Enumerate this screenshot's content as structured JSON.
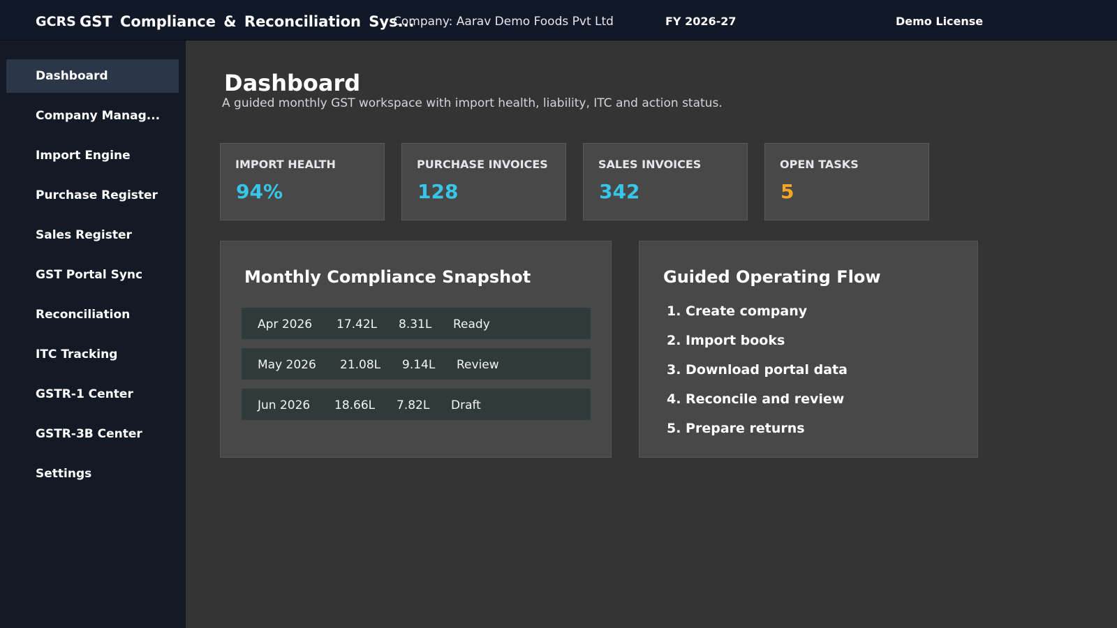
{
  "topbar": {
    "brand_code": "GCRS",
    "app_title": "GST Compliance & Reconciliation Sys...",
    "company": "Company: Aarav Demo Foods Pvt Ltd",
    "fiscal_year": "FY 2026-27",
    "license": "Demo License"
  },
  "sidebar": {
    "items": [
      {
        "label": "Dashboard",
        "active": true
      },
      {
        "label": "Company Manag..."
      },
      {
        "label": "Import Engine"
      },
      {
        "label": "Purchase Register"
      },
      {
        "label": "Sales Register"
      },
      {
        "label": "GST Portal Sync"
      },
      {
        "label": "Reconciliation"
      },
      {
        "label": "ITC Tracking"
      },
      {
        "label": "GSTR-1 Center"
      },
      {
        "label": "GSTR-3B Center"
      },
      {
        "label": "Settings"
      }
    ]
  },
  "page": {
    "title": "Dashboard",
    "subtitle": "A guided monthly GST workspace with import health, liability, ITC and action status."
  },
  "stats": [
    {
      "label": "IMPORT HEALTH",
      "value": "94%",
      "color": "#38c6e8"
    },
    {
      "label": "PURCHASE INVOICES",
      "value": "128",
      "color": "#38c6e8"
    },
    {
      "label": "SALES INVOICES",
      "value": "342",
      "color": "#38c6e8"
    },
    {
      "label": "OPEN TASKS",
      "value": "5",
      "color": "#f6a623"
    }
  ],
  "snapshot": {
    "title": "Monthly Compliance Snapshot",
    "rows": [
      {
        "month": "Apr 2026",
        "value1": "17.42L",
        "value2": "8.31L",
        "status": "Ready"
      },
      {
        "month": "May 2026",
        "value1": "21.08L",
        "value2": "9.14L",
        "status": "Review"
      },
      {
        "month": "Jun 2026",
        "value1": "18.66L",
        "value2": "7.82L",
        "status": "Draft"
      }
    ]
  },
  "flow": {
    "title": "Guided Operating Flow",
    "steps": [
      "1. Create company",
      "2. Import books",
      "3. Download portal data",
      "4. Reconcile and review",
      "5. Prepare returns"
    ]
  },
  "colors": {
    "topbar_bg": "#111827",
    "sidebar_bg": "#131a26",
    "active_nav_bg": "#2b3648",
    "content_bg": "#343434",
    "card_bg": "#484848",
    "accent_cyan": "#38c6e8",
    "accent_orange": "#f6a623",
    "row_bg": "#2f3a3b"
  }
}
